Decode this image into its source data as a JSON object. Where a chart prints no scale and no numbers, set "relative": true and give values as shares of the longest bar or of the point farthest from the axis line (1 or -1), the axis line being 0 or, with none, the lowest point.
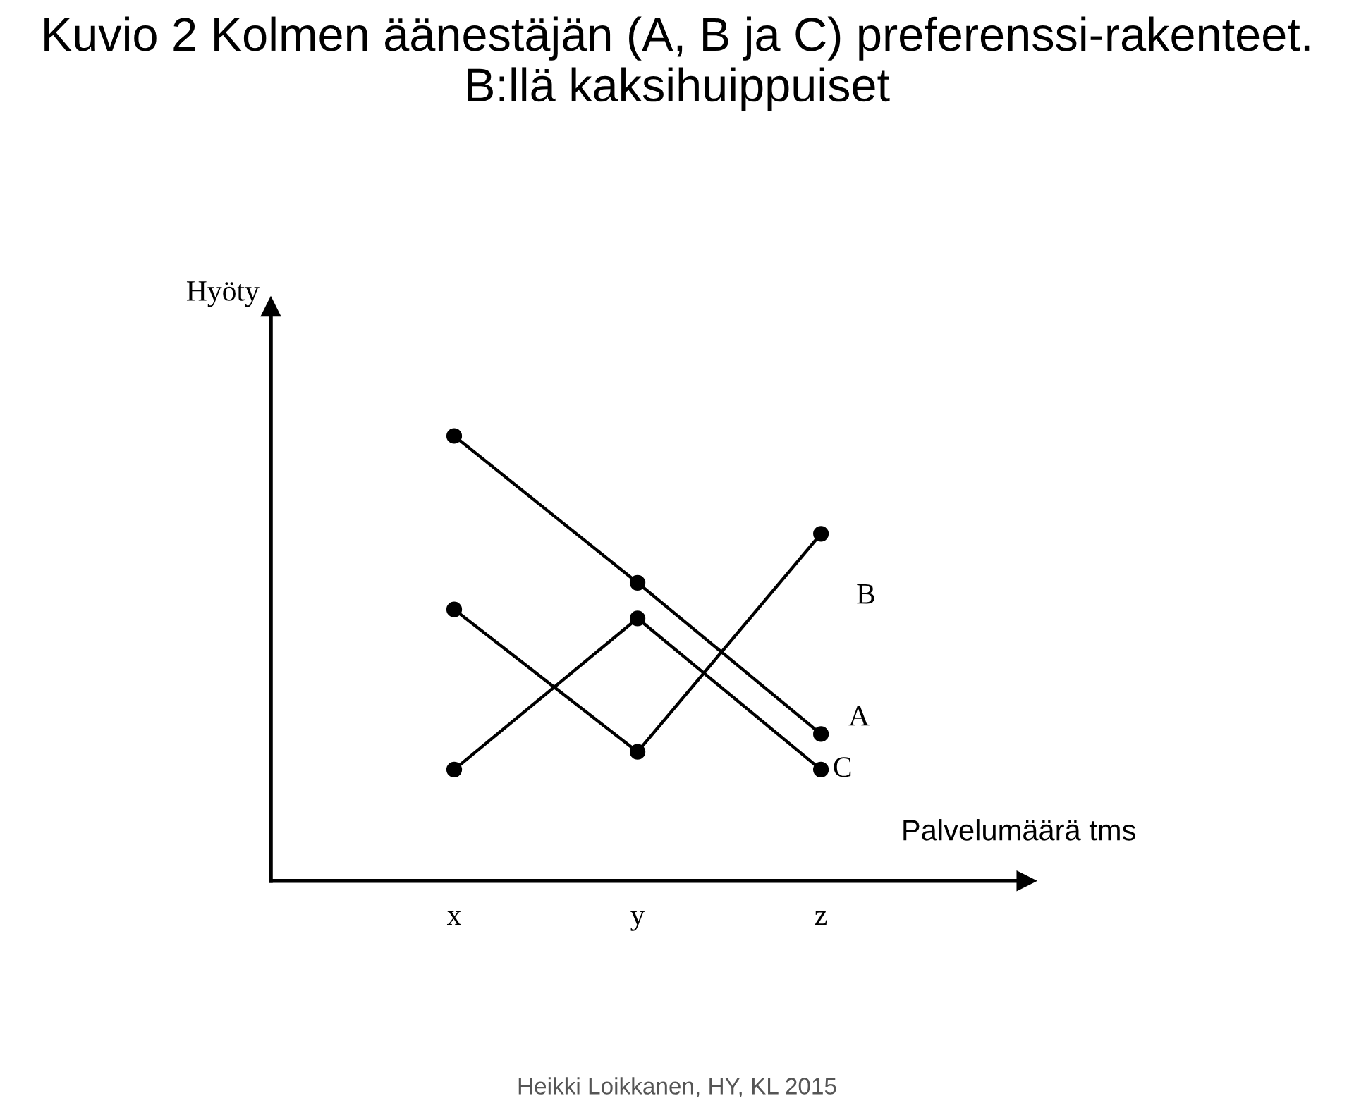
{
  "chart_data": {
    "type": "line",
    "title": "Kuvio 2 Kolmen äänestäjän (A, B ja C) preferenssi-rakenteet. B:llä kaksihuippuiset",
    "ylabel": "Hyöty",
    "xlabel": "Palvelumäärä tms",
    "categories": [
      "x",
      "y",
      "z"
    ],
    "relative": true,
    "series": [
      {
        "name": "A",
        "color": "#000000",
        "values": [
          1,
          0.67,
          0.33
        ]
      },
      {
        "name": "B",
        "color": "#000000",
        "values": [
          0.61,
          0.29,
          0.78
        ]
      },
      {
        "name": "C",
        "color": "#000000",
        "values": [
          0.25,
          0.59,
          0.25
        ]
      }
    ],
    "marker": "circle",
    "line_style": "solid",
    "grid": false,
    "legend": false,
    "annotations": [
      "Heikki Loikkanen, HY, KL 2015"
    ]
  }
}
